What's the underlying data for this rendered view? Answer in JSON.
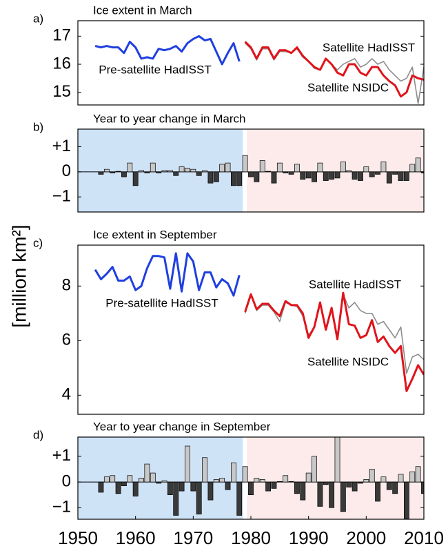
{
  "ylabel": "[million km²]",
  "chart_data": [
    {
      "type": "line",
      "panel": "a)",
      "title": "Ice extent in March",
      "xlim": [
        1950,
        2010
      ],
      "ylim": [
        14.55,
        17.55
      ],
      "yticks": [
        15,
        16,
        17
      ],
      "series": [
        {
          "name": "Pre-satellite HadISST",
          "color": "#1f3fe0",
          "x": [
            1953,
            1954,
            1955,
            1956,
            1957,
            1958,
            1959,
            1960,
            1961,
            1962,
            1963,
            1964,
            1965,
            1966,
            1967,
            1968,
            1969,
            1970,
            1971,
            1972,
            1973,
            1974,
            1975,
            1976,
            1977,
            1978
          ],
          "values": [
            16.65,
            16.6,
            16.65,
            16.6,
            16.6,
            16.4,
            16.8,
            16.6,
            16.2,
            16.25,
            16.2,
            16.55,
            16.5,
            16.55,
            16.65,
            16.45,
            16.75,
            16.9,
            17.0,
            16.85,
            16.9,
            16.45,
            16.0,
            16.4,
            16.75,
            16.1
          ]
        },
        {
          "name": "Satellite HadISST",
          "color": "#8c8c8c",
          "x": [
            1979,
            1980,
            1981,
            1982,
            1983,
            1984,
            1985,
            1986,
            1987,
            1988,
            1989,
            1990,
            1991,
            1992,
            1993,
            1994,
            1995,
            1996,
            1997,
            1998,
            1999,
            2000,
            2001,
            2002,
            2003,
            2004,
            2005,
            2006,
            2007,
            2008,
            2009,
            2010
          ],
          "values": [
            16.75,
            16.55,
            16.15,
            16.55,
            16.55,
            16.15,
            16.45,
            16.45,
            16.4,
            16.55,
            16.25,
            16.1,
            15.85,
            15.8,
            16.2,
            16.0,
            15.8,
            16.0,
            16.1,
            16.2,
            15.9,
            16.0,
            16.2,
            16.0,
            16.1,
            15.8,
            15.6,
            15.4,
            15.5,
            15.9,
            14.6,
            15.9
          ]
        },
        {
          "name": "Satellite NSIDC",
          "color": "#e0141b",
          "x": [
            1979,
            1980,
            1981,
            1982,
            1983,
            1984,
            1985,
            1986,
            1987,
            1988,
            1989,
            1990,
            1991,
            1992,
            1993,
            1994,
            1995,
            1996,
            1997,
            1998,
            1999,
            2000,
            2001,
            2002,
            2003,
            2004,
            2005,
            2006,
            2007,
            2008,
            2009,
            2010
          ],
          "values": [
            16.8,
            16.6,
            16.2,
            16.6,
            16.6,
            16.2,
            16.5,
            16.5,
            16.4,
            16.6,
            16.3,
            16.1,
            15.9,
            15.8,
            16.2,
            16.0,
            15.7,
            15.6,
            16.0,
            16.0,
            15.7,
            15.6,
            15.9,
            15.9,
            15.6,
            15.4,
            15.25,
            14.85,
            15.0,
            15.6,
            15.5,
            15.45
          ]
        }
      ]
    },
    {
      "type": "bar",
      "panel": "b)",
      "title": "Year to year change in March",
      "xlim": [
        1950,
        2010
      ],
      "ylim": [
        -1.6,
        1.7
      ],
      "yticks": [
        {
          "value": 1,
          "label": "+1"
        },
        0,
        {
          "value": -1,
          "label": "−1"
        }
      ],
      "shading": [
        {
          "xlim": [
            1950,
            1978.6
          ],
          "color": "#cfe3f7"
        },
        {
          "xlim": [
            1979.3,
            2010
          ],
          "color": "#fcebea"
        }
      ],
      "positive_color": "#c8c8c8",
      "negative_color": "#3a3a3a",
      "x": [
        1954,
        1955,
        1956,
        1957,
        1958,
        1959,
        1960,
        1961,
        1962,
        1963,
        1964,
        1965,
        1966,
        1967,
        1968,
        1969,
        1970,
        1971,
        1972,
        1973,
        1974,
        1975,
        1976,
        1977,
        1978,
        1979,
        1980,
        1981,
        1982,
        1983,
        1984,
        1985,
        1986,
        1987,
        1988,
        1989,
        1990,
        1991,
        1992,
        1993,
        1994,
        1995,
        1996,
        1997,
        1998,
        1999,
        2000,
        2001,
        2002,
        2003,
        2004,
        2005,
        2006,
        2007,
        2008,
        2009,
        2010
      ],
      "values": [
        -0.1,
        0.1,
        -0.05,
        0.02,
        -0.2,
        0.35,
        -0.55,
        0.05,
        -0.05,
        0.35,
        -0.05,
        0.05,
        0.05,
        -0.15,
        0.2,
        0.15,
        0.1,
        -0.15,
        0.05,
        -0.45,
        -0.4,
        0.3,
        0.35,
        -0.55,
        -0.55,
        0.65,
        -0.2,
        -0.4,
        0.45,
        0.02,
        -0.45,
        0.35,
        -0.05,
        -0.1,
        0.3,
        -0.3,
        -0.25,
        -0.4,
        0.35,
        -0.35,
        -0.3,
        -0.25,
        0.4,
        0.05,
        -0.3,
        -0.35,
        0.2,
        -0.2,
        -0.1,
        0.4,
        -0.45,
        -0.1,
        -0.35,
        -0.35,
        0.3,
        0.55,
        -0.05
      ]
    },
    {
      "type": "line",
      "panel": "c)",
      "title": "Ice extent in September",
      "xlim": [
        1950,
        2010
      ],
      "ylim": [
        3.3,
        9.5
      ],
      "yticks": [
        4,
        6,
        8
      ],
      "series": [
        {
          "name": "Pre-satellite HadISST",
          "color": "#1f3fe0",
          "x": [
            1953,
            1954,
            1955,
            1956,
            1957,
            1958,
            1959,
            1960,
            1961,
            1962,
            1963,
            1964,
            1965,
            1966,
            1967,
            1968,
            1969,
            1970,
            1971,
            1972,
            1973,
            1974,
            1975,
            1976,
            1977,
            1978
          ],
          "values": [
            8.6,
            8.25,
            8.45,
            8.7,
            8.2,
            8.2,
            8.35,
            7.85,
            8.0,
            8.65,
            9.1,
            9.1,
            9.05,
            7.9,
            9.2,
            7.8,
            9.2,
            8.9,
            7.85,
            8.5,
            8.5,
            7.95,
            8.25,
            8.1,
            7.65,
            8.4
          ]
        },
        {
          "name": "Satellite HadISST",
          "color": "#8c8c8c",
          "x": [
            1979,
            1980,
            1981,
            1982,
            1983,
            1984,
            1985,
            1986,
            1987,
            1988,
            1989,
            1990,
            1991,
            1992,
            1993,
            1994,
            1995,
            1996,
            1997,
            1998,
            1999,
            2000,
            2001,
            2002,
            2003,
            2004,
            2005,
            2006,
            2007,
            2008,
            2009,
            2010
          ],
          "values": [
            7.0,
            7.65,
            7.1,
            7.3,
            7.3,
            7.05,
            6.7,
            7.4,
            7.3,
            7.25,
            6.9,
            6.2,
            6.5,
            7.35,
            6.4,
            7.15,
            6.05,
            7.7,
            7.2,
            7.4,
            7.1,
            7.0,
            7.0,
            6.6,
            6.7,
            6.4,
            6.1,
            6.5,
            4.8,
            5.4,
            5.5,
            5.3
          ]
        },
        {
          "name": "Satellite NSIDC",
          "color": "#e0141b",
          "x": [
            1979,
            1980,
            1981,
            1982,
            1983,
            1984,
            1985,
            1986,
            1987,
            1988,
            1989,
            1990,
            1991,
            1992,
            1993,
            1994,
            1995,
            1996,
            1997,
            1998,
            1999,
            2000,
            2001,
            2002,
            2003,
            2004,
            2005,
            2006,
            2007,
            2008,
            2009,
            2010
          ],
          "values": [
            7.05,
            7.7,
            7.15,
            7.35,
            7.35,
            7.1,
            6.9,
            7.45,
            7.3,
            7.3,
            7.0,
            6.1,
            6.5,
            7.4,
            6.4,
            7.2,
            6.05,
            7.75,
            6.6,
            6.55,
            6.1,
            6.2,
            6.75,
            5.95,
            6.15,
            5.8,
            5.55,
            5.8,
            4.15,
            4.6,
            5.1,
            4.75
          ]
        }
      ]
    },
    {
      "type": "bar",
      "panel": "d)",
      "title": "Year to year change in September",
      "xlim": [
        1950,
        2010
      ],
      "ylim": [
        -1.45,
        1.75
      ],
      "yticks": [
        {
          "value": 1,
          "label": "+1"
        },
        0,
        {
          "value": -1,
          "label": "−1"
        }
      ],
      "xticks": [
        1950,
        1960,
        1970,
        1980,
        1990,
        2000,
        2010
      ],
      "shading": [
        {
          "xlim": [
            1950,
            1978.6
          ],
          "color": "#cfe3f7"
        },
        {
          "xlim": [
            1979.3,
            2010
          ],
          "color": "#fcebea"
        }
      ],
      "positive_color": "#c8c8c8",
      "negative_color": "#3a3a3a",
      "x": [
        1954,
        1955,
        1956,
        1957,
        1958,
        1959,
        1960,
        1961,
        1962,
        1963,
        1964,
        1965,
        1966,
        1967,
        1968,
        1969,
        1970,
        1971,
        1972,
        1973,
        1974,
        1975,
        1976,
        1977,
        1978,
        1979,
        1980,
        1981,
        1982,
        1983,
        1984,
        1985,
        1986,
        1987,
        1988,
        1989,
        1990,
        1991,
        1992,
        1993,
        1994,
        1995,
        1996,
        1997,
        1998,
        1999,
        2000,
        2001,
        2002,
        2003,
        2004,
        2005,
        2006,
        2007,
        2008,
        2009,
        2010
      ],
      "values": [
        -0.4,
        0.2,
        0.25,
        -0.45,
        -0.15,
        0.25,
        -0.55,
        0.15,
        0.7,
        0.35,
        -0.05,
        0.05,
        -0.5,
        -1.3,
        -0.35,
        1.4,
        -0.35,
        -1.25,
        0.95,
        -0.7,
        0.1,
        0.15,
        -0.3,
        0.75,
        -1.3,
        0.6,
        -0.5,
        0.15,
        0.1,
        -0.35,
        -0.25,
        0.02,
        0.25,
        0.02,
        -0.45,
        -0.7,
        0.35,
        1.0,
        -0.95,
        -0.1,
        -1.0,
        1.8,
        -1.15,
        -0.2,
        -0.35,
        -0.05,
        0.1,
        0.5,
        -0.75,
        0.2,
        -0.3,
        -0.45,
        0.3,
        -1.6,
        0.4,
        0.6,
        -0.45
      ]
    }
  ]
}
